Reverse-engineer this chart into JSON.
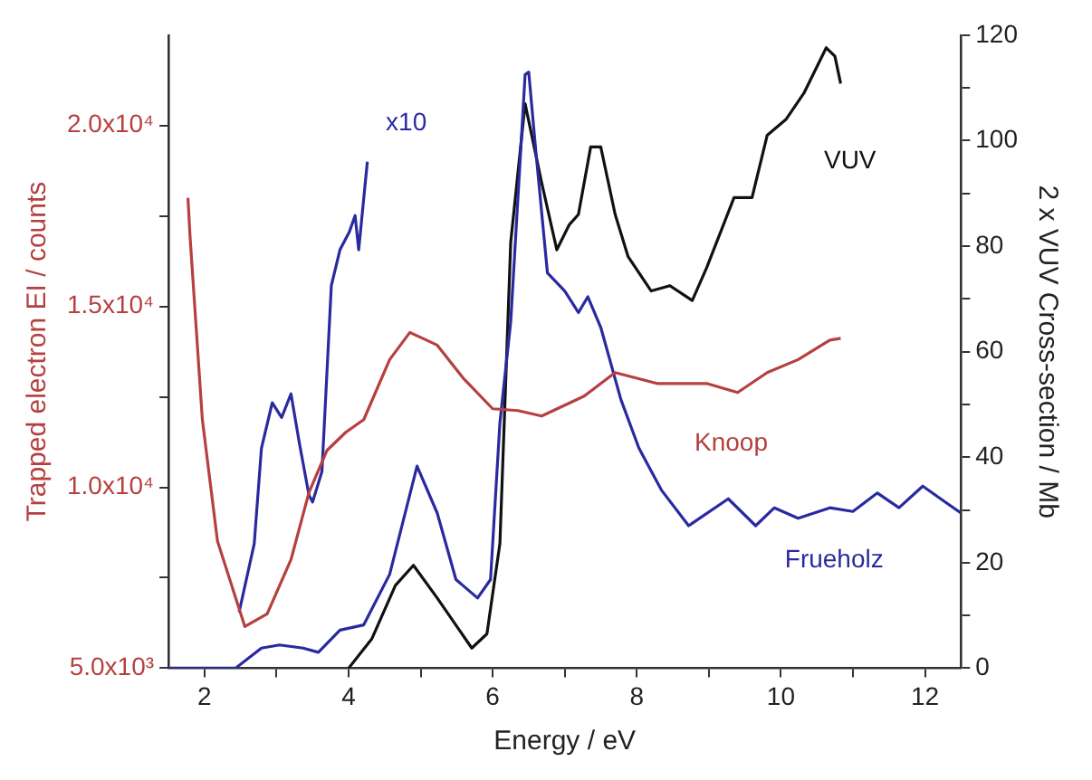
{
  "chart_data": {
    "type": "line",
    "xlabel": "Energy / eV",
    "ylabel": "Trapped electron EI / counts",
    "y2label": "2 x VUV Cross-section / Mb",
    "xlim": [
      1.5,
      12.5
    ],
    "xticks": [
      2,
      {
        "value": 3,
        "label": null
      },
      4,
      {
        "value": 5,
        "label": null
      },
      6,
      {
        "value": 7,
        "label": null
      },
      8,
      {
        "value": 9,
        "label": null
      },
      10,
      {
        "value": 11,
        "label": null
      },
      12
    ],
    "ylim": [
      5000,
      22500
    ],
    "yticks": [
      {
        "value": 5000,
        "label": "5.0x10³"
      },
      {
        "value": 7500,
        "label": null
      },
      {
        "value": 10000,
        "label": "1.0x10⁴"
      },
      {
        "value": 12500,
        "label": null
      },
      {
        "value": 15000,
        "label": "1.5x10⁴"
      },
      {
        "value": 17500,
        "label": null
      },
      {
        "value": 20000,
        "label": "2.0x10⁴"
      }
    ],
    "y2lim": [
      0,
      120
    ],
    "y2ticks": [
      0,
      {
        "value": 10,
        "label": null
      },
      20,
      {
        "value": 30,
        "label": null
      },
      40,
      {
        "value": 50,
        "label": null
      },
      60,
      {
        "value": 70,
        "label": null
      },
      80,
      {
        "value": 90,
        "label": null
      },
      100,
      {
        "value": 110,
        "label": null
      },
      120
    ],
    "grid": false,
    "legend": false,
    "marker": "none",
    "line_style": "solid",
    "series": [
      {
        "name": "Knoop",
        "color": "#b5403f",
        "x": [
          1.77,
          1.8,
          1.97,
          2.18,
          2.56,
          2.87,
          3.2,
          3.45,
          3.7,
          3.96,
          4.21,
          4.57,
          4.85,
          5.23,
          5.59,
          6.0,
          6.35,
          6.68,
          7.27,
          7.7,
          8.28,
          8.97,
          9.4,
          9.81,
          10.24,
          10.68,
          10.83
        ],
        "values": [
          18000,
          16900,
          11870,
          8510,
          6150,
          6500,
          8000,
          9860,
          11020,
          11520,
          11870,
          13530,
          14280,
          13930,
          13020,
          12170,
          12120,
          11970,
          12520,
          13170,
          12870,
          12870,
          12620,
          13170,
          13530,
          14070,
          14120
        ]
      },
      {
        "name": "Frueholz",
        "color": "#2a2aa0",
        "axis": "y2",
        "x": [
          1.5,
          2.43,
          2.79,
          3.04,
          3.37,
          3.58,
          3.88,
          4.21,
          4.57,
          4.95,
          5.23,
          5.49,
          5.79,
          5.97,
          6.1,
          6.25,
          6.45,
          6.5,
          6.6,
          6.76,
          7.0,
          7.19,
          7.32,
          7.5,
          7.78,
          8.03,
          8.34,
          8.72,
          9.27,
          9.65,
          9.91,
          10.24,
          10.68,
          11.0,
          11.34,
          11.64,
          11.97,
          12.28,
          12.5
        ],
        "values": [
          0,
          0,
          3.8,
          4.4,
          3.8,
          3,
          7.2,
          8.2,
          17.8,
          38.3,
          29.4,
          16.8,
          13.3,
          16.8,
          46.5,
          65.6,
          112.5,
          113,
          97.8,
          74.9,
          71.5,
          67.4,
          70.4,
          64.6,
          50.9,
          41.7,
          33.8,
          27,
          32.1,
          27,
          30.4,
          28.4,
          30.4,
          29.7,
          33.2,
          30.4,
          34.5,
          31.5,
          29.4
        ]
      },
      {
        "name": "x10",
        "color": "#2a2aa0",
        "axis": "y2",
        "x": [
          2.48,
          2.69,
          2.79,
          2.94,
          3.07,
          3.2,
          3.32,
          3.45,
          3.5,
          3.63,
          3.76,
          3.88,
          4.01,
          4.09,
          4.14,
          4.26
        ],
        "values": [
          10.6,
          23.6,
          41.7,
          50.3,
          47.5,
          52,
          42.4,
          32.8,
          31.5,
          37.3,
          72.5,
          79.3,
          82.7,
          85.8,
          79.3,
          96
        ]
      },
      {
        "name": "VUV",
        "color": "#111111",
        "axis": "y2",
        "x": [
          4.0,
          4.32,
          4.65,
          4.9,
          5.23,
          5.71,
          5.92,
          6.1,
          6.25,
          6.45,
          6.68,
          6.89,
          7.06,
          7.19,
          7.36,
          7.5,
          7.7,
          7.88,
          8.2,
          8.46,
          8.77,
          8.97,
          9.35,
          9.6,
          9.81,
          10.07,
          10.32,
          10.63,
          10.75,
          10.83
        ],
        "values": [
          0,
          5.5,
          15.7,
          19.5,
          13.3,
          3.8,
          6.5,
          23.6,
          80.7,
          107,
          92,
          79.3,
          84,
          86,
          98.8,
          98.8,
          86,
          78,
          71.5,
          72.5,
          69.7,
          75.9,
          89.2,
          89.2,
          101,
          104,
          109,
          117.6,
          116,
          110.8
        ]
      }
    ]
  }
}
